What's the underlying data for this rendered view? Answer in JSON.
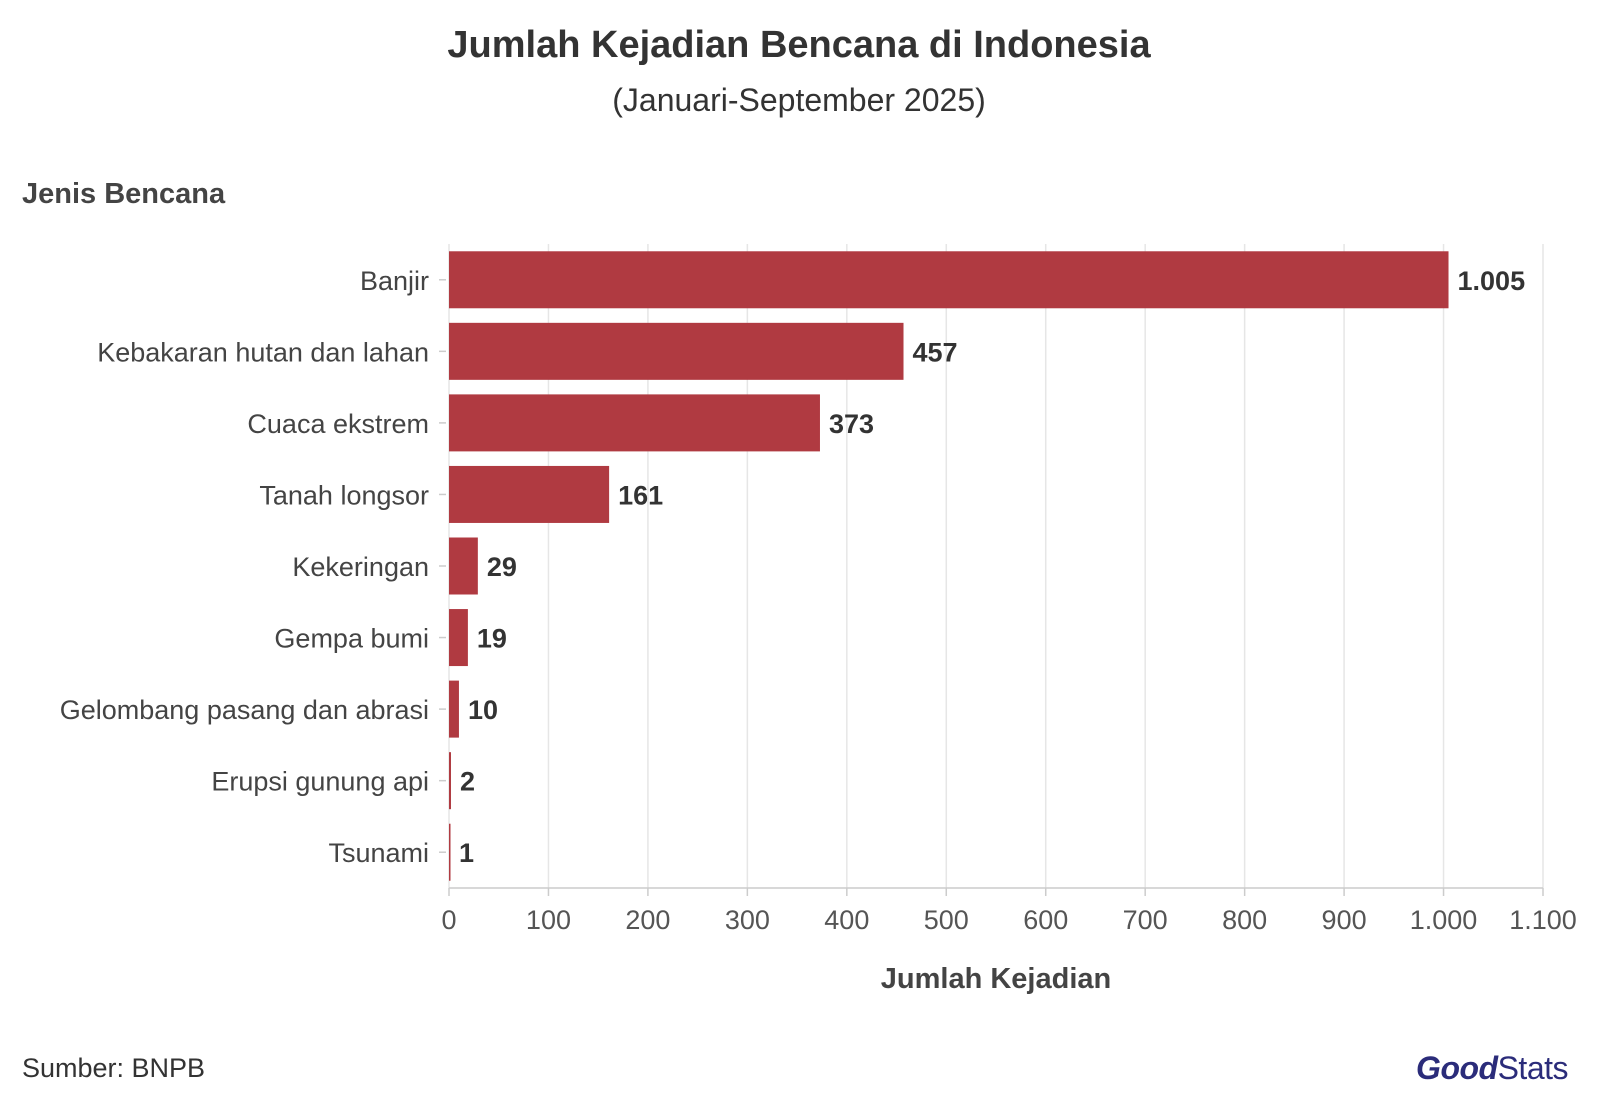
{
  "chart_data": {
    "type": "bar",
    "orientation": "horizontal",
    "title": "Jumlah Kejadian Bencana di Indonesia",
    "subtitle": "(Januari-September 2025)",
    "ylabel": "Jenis Bencana",
    "xlabel": "Jumlah Kejadian",
    "categories": [
      "Banjir",
      "Kebakaran hutan dan lahan",
      "Cuaca ekstrem",
      "Tanah longsor",
      "Kekeringan",
      "Gempa bumi",
      "Gelombang pasang dan abrasi",
      "Erupsi gunung api",
      "Tsunami"
    ],
    "values": [
      1005,
      457,
      373,
      161,
      29,
      19,
      10,
      2,
      1
    ],
    "value_labels": [
      "1.005",
      "457",
      "373",
      "161",
      "29",
      "19",
      "10",
      "2",
      "1"
    ],
    "xlim": [
      0,
      1100
    ],
    "xticks": [
      0,
      100,
      200,
      300,
      400,
      500,
      600,
      700,
      800,
      900,
      1000,
      1100
    ],
    "xtick_labels": [
      "0",
      "100",
      "200",
      "300",
      "400",
      "500",
      "600",
      "700",
      "800",
      "900",
      "1.000",
      "1.100"
    ],
    "grid": true,
    "bar_color": "#b03a41"
  },
  "footer": {
    "source": "Sumber: BNPB",
    "logo_good": "Good",
    "logo_stats": "Stats"
  }
}
